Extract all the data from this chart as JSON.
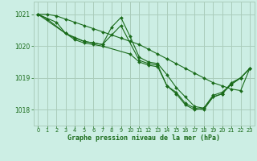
{
  "title": "Graphe pression niveau de la mer (hPa)",
  "background_color": "#cceee4",
  "grid_color": "#aaccbb",
  "line_color": "#1a6b1a",
  "xlim": [
    -0.5,
    23.5
  ],
  "ylim": [
    1017.5,
    1021.4
  ],
  "yticks": [
    1018,
    1019,
    1020,
    1021
  ],
  "xticks": [
    0,
    1,
    2,
    3,
    4,
    5,
    6,
    7,
    8,
    9,
    10,
    11,
    12,
    13,
    14,
    15,
    16,
    17,
    18,
    19,
    20,
    21,
    22,
    23
  ],
  "series": [
    {
      "x": [
        0,
        1,
        3,
        4,
        5,
        6,
        7,
        9,
        11,
        12,
        13,
        14,
        15,
        16,
        17,
        18,
        19,
        20,
        21,
        22,
        23
      ],
      "y": [
        1021.0,
        1020.85,
        1020.4,
        1020.25,
        1020.15,
        1020.1,
        1020.05,
        1020.65,
        1019.55,
        1019.45,
        1019.4,
        1018.75,
        1018.55,
        1018.2,
        1018.05,
        1018.0,
        1018.4,
        1018.5,
        1018.85,
        1019.0,
        1019.3
      ]
    },
    {
      "x": [
        0,
        1,
        2,
        3,
        4,
        5,
        6,
        7,
        8,
        9,
        10,
        11,
        12,
        13,
        14,
        15,
        16,
        17,
        18,
        19,
        20,
        21,
        22,
        23
      ],
      "y": [
        1021.0,
        1021.0,
        1020.95,
        1020.85,
        1020.75,
        1020.65,
        1020.55,
        1020.45,
        1020.35,
        1020.25,
        1020.15,
        1020.05,
        1019.9,
        1019.75,
        1019.6,
        1019.45,
        1019.3,
        1019.15,
        1019.0,
        1018.85,
        1018.75,
        1018.65,
        1018.6,
        1019.3
      ]
    },
    {
      "x": [
        0,
        3,
        5,
        6,
        7,
        8,
        9,
        10,
        11,
        12,
        13,
        14,
        15,
        16,
        17,
        18,
        19,
        20,
        21,
        22,
        23
      ],
      "y": [
        1021.0,
        1020.4,
        1020.15,
        1020.1,
        1020.05,
        1020.6,
        1020.9,
        1020.3,
        1019.65,
        1019.5,
        1019.45,
        1019.1,
        1018.7,
        1018.4,
        1018.1,
        1018.05,
        1018.45,
        1018.55,
        1018.8,
        1019.0,
        1019.3
      ]
    },
    {
      "x": [
        0,
        2,
        3,
        4,
        5,
        6,
        7,
        10,
        11,
        12,
        13,
        14,
        15,
        16,
        17,
        18,
        19,
        20,
        21,
        22,
        23
      ],
      "y": [
        1021.0,
        1020.75,
        1020.4,
        1020.2,
        1020.1,
        1020.05,
        1020.0,
        1019.75,
        1019.5,
        1019.4,
        1019.35,
        1018.75,
        1018.5,
        1018.15,
        1018.0,
        1018.05,
        1018.4,
        1018.5,
        1018.8,
        1019.0,
        1019.3
      ]
    }
  ]
}
